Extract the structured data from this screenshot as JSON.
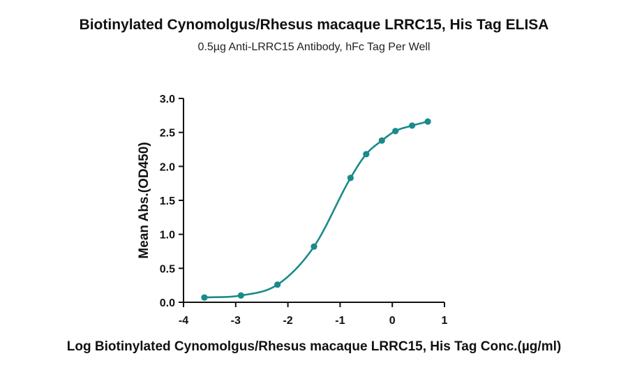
{
  "chart_data": {
    "type": "line",
    "title": "Biotinylated Cynomolgus/Rhesus macaque LRRC15, His Tag ELISA",
    "subtitle": "0.5µg Anti-LRRC15 Antibody, hFc Tag Per Well",
    "xlabel": "Log Biotinylated Cynomolgus/Rhesus macaque LRRC15, His Tag Conc.(µg/ml)",
    "ylabel": "Mean Abs.(OD450)",
    "xlim": [
      -4,
      1
    ],
    "ylim": [
      0,
      3.0
    ],
    "x_ticks": [
      "-4",
      "-3",
      "-2",
      "-1",
      "0",
      "1"
    ],
    "y_ticks": [
      "0.0",
      "0.5",
      "1.0",
      "1.5",
      "2.0",
      "2.5",
      "3.0"
    ],
    "grid": false,
    "color": "#1a8a8a",
    "series": [
      {
        "points": [
          {
            "x": -3.6,
            "y": 0.07
          },
          {
            "x": -2.9,
            "y": 0.1
          },
          {
            "x": -2.2,
            "y": 0.26
          },
          {
            "x": -1.5,
            "y": 0.82
          },
          {
            "x": -0.8,
            "y": 1.83
          },
          {
            "x": -0.5,
            "y": 2.18
          },
          {
            "x": -0.2,
            "y": 2.38
          },
          {
            "x": 0.06,
            "y": 2.52
          },
          {
            "x": 0.38,
            "y": 2.6
          },
          {
            "x": 0.68,
            "y": 2.66
          }
        ]
      }
    ]
  }
}
